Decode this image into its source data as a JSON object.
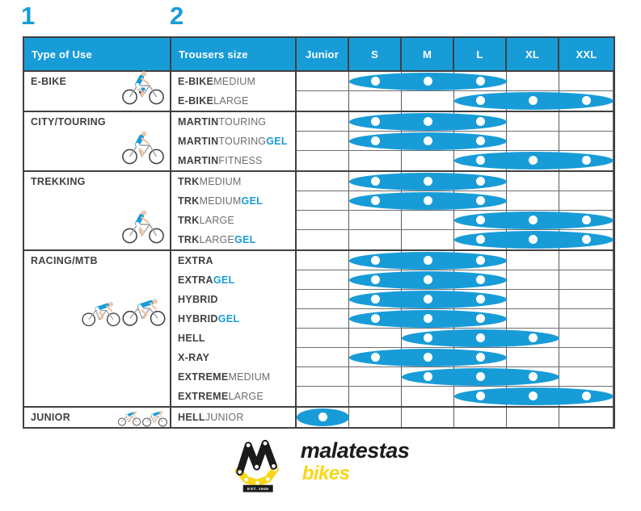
{
  "markers": {
    "one": "1",
    "two": "2"
  },
  "table": {
    "header": {
      "type_of_use": "Type of Use",
      "trousers_size": "Trousers size",
      "sizes": [
        "Junior",
        "S",
        "M",
        "L",
        "XL",
        "XXL"
      ]
    },
    "sections": [
      {
        "label": "E-BIKE",
        "illustration": "ebike-rider",
        "rows": [
          {
            "bold": "E-BIKE",
            "rest": "MEDIUM",
            "gel": "",
            "sizes": [
              "S",
              "M",
              "L"
            ]
          },
          {
            "bold": "E-BIKE",
            "rest": "LARGE",
            "gel": "",
            "sizes": [
              "L",
              "XL",
              "XXL"
            ]
          }
        ]
      },
      {
        "label": "CITY/TOURING",
        "illustration": "city-rider",
        "rows": [
          {
            "bold": "MARTIN",
            "rest": "TOURING",
            "gel": "",
            "sizes": [
              "S",
              "M",
              "L"
            ]
          },
          {
            "bold": "MARTIN",
            "rest": "TOURING",
            "gel": "GEL",
            "sizes": [
              "S",
              "M",
              "L"
            ]
          },
          {
            "bold": "MARTIN",
            "rest": "FITNESS",
            "gel": "",
            "sizes": [
              "L",
              "XL",
              "XXL"
            ]
          }
        ]
      },
      {
        "label": "TREKKING",
        "illustration": "trekking-rider",
        "rows": [
          {
            "bold": "TRK",
            "rest": "MEDIUM",
            "gel": "",
            "sizes": [
              "S",
              "M",
              "L"
            ]
          },
          {
            "bold": "TRK",
            "rest": "MEDIUM",
            "gel": "GEL",
            "sizes": [
              "S",
              "M",
              "L"
            ]
          },
          {
            "bold": "TRK",
            "rest": "LARGE",
            "gel": "",
            "sizes": [
              "L",
              "XL",
              "XXL"
            ]
          },
          {
            "bold": "TRK",
            "rest": "LARGE",
            "gel": "GEL",
            "sizes": [
              "L",
              "XL",
              "XXL"
            ]
          }
        ]
      },
      {
        "label": "RACING/MTB",
        "illustration": "racing-riders",
        "rows": [
          {
            "bold": "EXTRA",
            "rest": "",
            "gel": "",
            "sizes": [
              "S",
              "M",
              "L"
            ]
          },
          {
            "bold": "EXTRA",
            "rest": "",
            "gel": "GEL",
            "sizes": [
              "S",
              "M",
              "L"
            ]
          },
          {
            "bold": "HYBRID",
            "rest": "",
            "gel": "",
            "sizes": [
              "S",
              "M",
              "L"
            ]
          },
          {
            "bold": "HYBRID",
            "rest": "",
            "gel": "GEL",
            "sizes": [
              "S",
              "M",
              "L"
            ]
          },
          {
            "bold": "HELL",
            "rest": "",
            "gel": "",
            "sizes": [
              "M",
              "L",
              "XL"
            ]
          },
          {
            "bold": "X-RAY",
            "rest": "",
            "gel": "",
            "sizes": [
              "S",
              "M",
              "L"
            ]
          },
          {
            "bold": "EXTREME",
            "rest": "MEDIUM",
            "gel": "",
            "sizes": [
              "M",
              "L",
              "XL"
            ]
          },
          {
            "bold": "EXTREME",
            "rest": "LARGE",
            "gel": "",
            "sizes": [
              "L",
              "XL",
              "XXL"
            ]
          }
        ]
      },
      {
        "label": "JUNIOR",
        "illustration": "junior-riders",
        "rows": [
          {
            "bold": "HELL",
            "rest": "JUNIOR",
            "gel": "",
            "sizes": [
              "Junior"
            ]
          }
        ]
      }
    ]
  },
  "chart_data": {
    "type": "table",
    "title": "Trousers size availability by type of use",
    "columns": [
      "Type of Use",
      "Trousers size",
      "Junior",
      "S",
      "M",
      "L",
      "XL",
      "XXL"
    ],
    "rows": [
      {
        "type_of_use": "E-BIKE",
        "product": "E-BIKE MEDIUM",
        "available_sizes": [
          "S",
          "M",
          "L"
        ]
      },
      {
        "type_of_use": "E-BIKE",
        "product": "E-BIKE LARGE",
        "available_sizes": [
          "L",
          "XL",
          "XXL"
        ]
      },
      {
        "type_of_use": "CITY/TOURING",
        "product": "MARTIN TOURING",
        "available_sizes": [
          "S",
          "M",
          "L"
        ]
      },
      {
        "type_of_use": "CITY/TOURING",
        "product": "MARTIN TOURING GEL",
        "available_sizes": [
          "S",
          "M",
          "L"
        ]
      },
      {
        "type_of_use": "CITY/TOURING",
        "product": "MARTIN FITNESS",
        "available_sizes": [
          "L",
          "XL",
          "XXL"
        ]
      },
      {
        "type_of_use": "TREKKING",
        "product": "TRK MEDIUM",
        "available_sizes": [
          "S",
          "M",
          "L"
        ]
      },
      {
        "type_of_use": "TREKKING",
        "product": "TRK MEDIUM GEL",
        "available_sizes": [
          "S",
          "M",
          "L"
        ]
      },
      {
        "type_of_use": "TREKKING",
        "product": "TRK LARGE",
        "available_sizes": [
          "L",
          "XL",
          "XXL"
        ]
      },
      {
        "type_of_use": "TREKKING",
        "product": "TRK LARGE GEL",
        "available_sizes": [
          "L",
          "XL",
          "XXL"
        ]
      },
      {
        "type_of_use": "RACING/MTB",
        "product": "EXTRA",
        "available_sizes": [
          "S",
          "M",
          "L"
        ]
      },
      {
        "type_of_use": "RACING/MTB",
        "product": "EXTRA GEL",
        "available_sizes": [
          "S",
          "M",
          "L"
        ]
      },
      {
        "type_of_use": "RACING/MTB",
        "product": "HYBRID",
        "available_sizes": [
          "S",
          "M",
          "L"
        ]
      },
      {
        "type_of_use": "RACING/MTB",
        "product": "HYBRID GEL",
        "available_sizes": [
          "S",
          "M",
          "L"
        ]
      },
      {
        "type_of_use": "RACING/MTB",
        "product": "HELL",
        "available_sizes": [
          "M",
          "L",
          "XL"
        ]
      },
      {
        "type_of_use": "RACING/MTB",
        "product": "X-RAY",
        "available_sizes": [
          "S",
          "M",
          "L"
        ]
      },
      {
        "type_of_use": "RACING/MTB",
        "product": "EXTREME MEDIUM",
        "available_sizes": [
          "M",
          "L",
          "XL"
        ]
      },
      {
        "type_of_use": "RACING/MTB",
        "product": "EXTREME LARGE",
        "available_sizes": [
          "L",
          "XL",
          "XXL"
        ]
      },
      {
        "type_of_use": "JUNIOR",
        "product": "HELL JUNIOR",
        "available_sizes": [
          "Junior"
        ]
      }
    ]
  },
  "logo": {
    "brand": "malatestas",
    "sub": "bikes",
    "est": "EST. 1945"
  },
  "colors": {
    "accent_blue": "#189CD8",
    "dark_text": "#414042",
    "gray_text": "#6D6E71",
    "grid_gray": "#58595B",
    "brand_yellow": "#F9D616",
    "brand_black": "#1B1B1B"
  }
}
